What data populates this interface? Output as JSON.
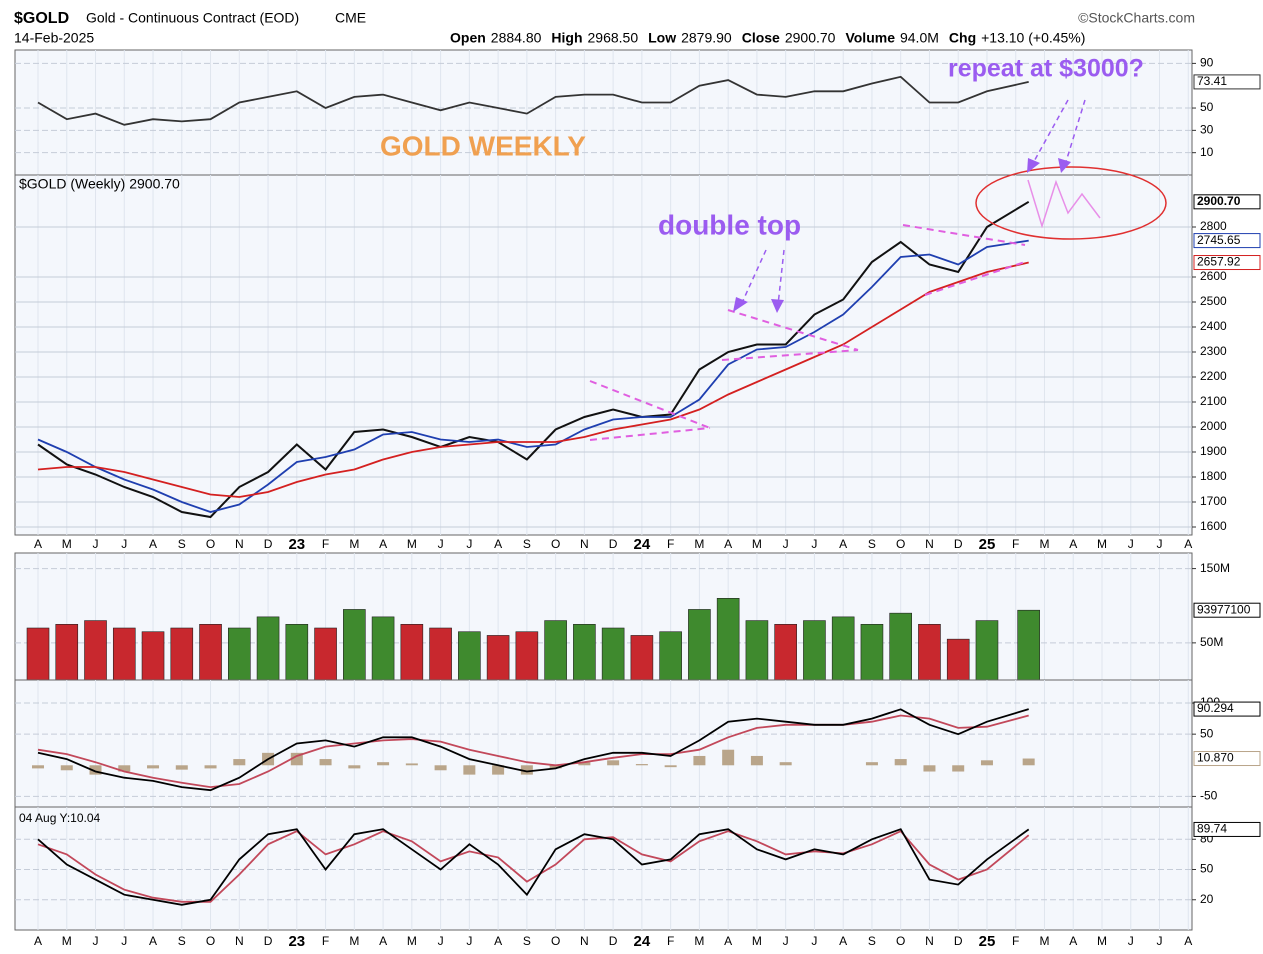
{
  "header": {
    "symbol": "$GOLD",
    "name": "Gold - Continuous Contract (EOD)",
    "exchange": "CME",
    "date": "14-Feb-2025",
    "stats": [
      {
        "label": "Open",
        "value": "2884.80"
      },
      {
        "label": "High",
        "value": "2968.50"
      },
      {
        "label": "Low",
        "value": "2879.90"
      },
      {
        "label": "Close",
        "value": "2900.70"
      },
      {
        "label": "Volume",
        "value": "94.0M"
      },
      {
        "label": "Chg",
        "value": "+13.10 (+0.45%)"
      }
    ],
    "source": "©StockCharts.com"
  },
  "chart_data": [
    {
      "type": "line",
      "ylim": [
        -10,
        102
      ],
      "yticks": [
        10,
        30,
        50,
        90
      ],
      "x": [
        0,
        1,
        2,
        3,
        4,
        5,
        6,
        7,
        8,
        9,
        10,
        11,
        12,
        13,
        14,
        15,
        16,
        17,
        18,
        19,
        20,
        21,
        22,
        23,
        24,
        25,
        26,
        27,
        28,
        29,
        30,
        31,
        32,
        33,
        34.45
      ],
      "series": [
        {
          "color": "#333333",
          "values": [
            55,
            40,
            45,
            35,
            40,
            38,
            40,
            55,
            60,
            65,
            50,
            60,
            62,
            55,
            48,
            55,
            50,
            45,
            60,
            62,
            62,
            55,
            55,
            70,
            75,
            62,
            60,
            65,
            65,
            72,
            78,
            55,
            55,
            65,
            73.41
          ],
          "value_labels": [
            null,
            null,
            null,
            null,
            null,
            null,
            null,
            null,
            null,
            null,
            null,
            null,
            null,
            null,
            null,
            null,
            null,
            null,
            null,
            null,
            null,
            null,
            null,
            null,
            null,
            null,
            null,
            null,
            null,
            null,
            null,
            null,
            null,
            null,
            "73.41"
          ]
        }
      ]
    },
    {
      "type": "line",
      "title": "$GOLD (Weekly) 2900.70",
      "annotations": [
        "GOLD WEEKLY",
        "double top",
        "repeat at $3000?"
      ],
      "ylim": [
        1568,
        3008
      ],
      "yticks": [
        1600,
        1700,
        1800,
        1900,
        2000,
        2100,
        2200,
        2300,
        2400,
        2500,
        2600,
        2800
      ],
      "xlim": [
        -0.8,
        40.13
      ],
      "xticks": [
        {
          "value": 0,
          "label": "A"
        },
        {
          "value": 1,
          "label": "M"
        },
        {
          "value": 2,
          "label": "J"
        },
        {
          "value": 3,
          "label": "J"
        },
        {
          "value": 4,
          "label": "A"
        },
        {
          "value": 5,
          "label": "S"
        },
        {
          "value": 6,
          "label": "O"
        },
        {
          "value": 7,
          "label": "N"
        },
        {
          "value": 8,
          "label": "D"
        },
        {
          "value": 9,
          "label": "23"
        },
        {
          "value": 10,
          "label": "F"
        },
        {
          "value": 11,
          "label": "M"
        },
        {
          "value": 12,
          "label": "A"
        },
        {
          "value": 13,
          "label": "M"
        },
        {
          "value": 14,
          "label": "J"
        },
        {
          "value": 15,
          "label": "J"
        },
        {
          "value": 16,
          "label": "A"
        },
        {
          "value": 17,
          "label": "S"
        },
        {
          "value": 18,
          "label": "O"
        },
        {
          "value": 19,
          "label": "N"
        },
        {
          "value": 20,
          "label": "D"
        },
        {
          "value": 21,
          "label": "24"
        },
        {
          "value": 22,
          "label": "F"
        },
        {
          "value": 23,
          "label": "M"
        },
        {
          "value": 24,
          "label": "A"
        },
        {
          "value": 25,
          "label": "M"
        },
        {
          "value": 26,
          "label": "J"
        },
        {
          "value": 27,
          "label": "J"
        },
        {
          "value": 28,
          "label": "A"
        },
        {
          "value": 29,
          "label": "S"
        },
        {
          "value": 30,
          "label": "O"
        },
        {
          "value": 31,
          "label": "N"
        },
        {
          "value": 32,
          "label": "D"
        },
        {
          "value": 33,
          "label": "25"
        },
        {
          "value": 34,
          "label": "F"
        },
        {
          "value": 35,
          "label": "M"
        },
        {
          "value": 36,
          "label": "A"
        },
        {
          "value": 37,
          "label": "M"
        },
        {
          "value": 38,
          "label": "J"
        },
        {
          "value": 39,
          "label": "J"
        },
        {
          "value": 40,
          "label": "A"
        }
      ],
      "x": [
        0,
        1,
        2,
        3,
        4,
        5,
        6,
        7,
        8,
        9,
        10,
        11,
        12,
        13,
        14,
        15,
        16,
        17,
        18,
        19,
        20,
        21,
        22,
        23,
        24,
        25,
        26,
        27,
        28,
        29,
        30,
        31,
        32,
        33,
        34.45
      ],
      "series": [
        {
          "color": "#111111",
          "values": [
            1930,
            1850,
            1810,
            1760,
            1720,
            1660,
            1640,
            1760,
            1820,
            1930,
            1830,
            1980,
            1990,
            1960,
            1920,
            1960,
            1940,
            1870,
            1990,
            2040,
            2070,
            2040,
            2050,
            2230,
            2300,
            2330,
            2330,
            2450,
            2510,
            2660,
            2740,
            2650,
            2620,
            2800,
            2900.7
          ],
          "value_labels": [
            null,
            null,
            null,
            null,
            null,
            null,
            null,
            null,
            null,
            null,
            null,
            null,
            null,
            null,
            null,
            null,
            null,
            null,
            null,
            null,
            null,
            null,
            null,
            null,
            null,
            null,
            null,
            null,
            null,
            null,
            null,
            null,
            null,
            null,
            "2900.70"
          ]
        },
        {
          "color": "#1f3fb0",
          "values": [
            1950,
            1900,
            1840,
            1790,
            1750,
            1700,
            1660,
            1690,
            1770,
            1860,
            1880,
            1910,
            1970,
            1980,
            1950,
            1940,
            1950,
            1920,
            1930,
            1990,
            2030,
            2040,
            2040,
            2110,
            2250,
            2310,
            2320,
            2380,
            2450,
            2560,
            2680,
            2690,
            2650,
            2720,
            2745.65
          ],
          "value_labels": [
            null,
            null,
            null,
            null,
            null,
            null,
            null,
            null,
            null,
            null,
            null,
            null,
            null,
            null,
            null,
            null,
            null,
            null,
            null,
            null,
            null,
            null,
            null,
            null,
            null,
            null,
            null,
            null,
            null,
            null,
            null,
            null,
            null,
            null,
            "2745.65"
          ]
        },
        {
          "color": "#d42020",
          "values": [
            1830,
            1840,
            1840,
            1820,
            1790,
            1760,
            1730,
            1720,
            1740,
            1780,
            1810,
            1830,
            1870,
            1900,
            1920,
            1930,
            1940,
            1940,
            1940,
            1960,
            1990,
            2010,
            2030,
            2070,
            2130,
            2180,
            2230,
            2280,
            2330,
            2400,
            2470,
            2540,
            2580,
            2620,
            2657.92
          ],
          "value_labels": [
            null,
            null,
            null,
            null,
            null,
            null,
            null,
            null,
            null,
            null,
            null,
            null,
            null,
            null,
            null,
            null,
            null,
            null,
            null,
            null,
            null,
            null,
            null,
            null,
            null,
            null,
            null,
            null,
            null,
            null,
            null,
            null,
            null,
            null,
            "2657.92"
          ]
        }
      ]
    },
    {
      "type": "bar",
      "ylim": [
        0,
        171
      ],
      "yticks": [
        {
          "value": 50,
          "label": "50M"
        },
        {
          "value": 150,
          "label": "150M"
        }
      ],
      "x": [
        0,
        1,
        2,
        3,
        4,
        5,
        6,
        7,
        8,
        9,
        10,
        11,
        12,
        13,
        14,
        15,
        16,
        17,
        18,
        19,
        20,
        21,
        22,
        23,
        24,
        25,
        26,
        27,
        28,
        29,
        30,
        31,
        32,
        33,
        34.45
      ],
      "values": [
        70,
        75,
        80,
        70,
        65,
        70,
        75,
        70,
        85,
        75,
        70,
        95,
        85,
        75,
        70,
        65,
        60,
        65,
        80,
        75,
        70,
        60,
        65,
        95,
        110,
        80,
        75,
        80,
        85,
        75,
        90,
        75,
        55,
        80,
        93.9771
      ],
      "colors": [
        "#c8282e",
        "#c8282e",
        "#c8282e",
        "#c8282e",
        "#c8282e",
        "#c8282e",
        "#c8282e",
        "#3f8a2e",
        "#3f8a2e",
        "#3f8a2e",
        "#c8282e",
        "#3f8a2e",
        "#3f8a2e",
        "#c8282e",
        "#c8282e",
        "#3f8a2e",
        "#c8282e",
        "#c8282e",
        "#3f8a2e",
        "#3f8a2e",
        "#3f8a2e",
        "#c8282e",
        "#3f8a2e",
        "#3f8a2e",
        "#3f8a2e",
        "#3f8a2e",
        "#c8282e",
        "#3f8a2e",
        "#3f8a2e",
        "#3f8a2e",
        "#3f8a2e",
        "#c8282e",
        "#c8282e",
        "#3f8a2e",
        "#3f8a2e"
      ],
      "value_labels": [
        null,
        null,
        null,
        null,
        null,
        null,
        null,
        null,
        null,
        null,
        null,
        null,
        null,
        null,
        null,
        null,
        null,
        null,
        null,
        null,
        null,
        null,
        null,
        null,
        null,
        null,
        null,
        null,
        null,
        null,
        null,
        null,
        null,
        null,
        "93977100"
      ]
    },
    {
      "type": "line",
      "ylim": [
        -67,
        137
      ],
      "yticks": [
        -50,
        50,
        100
      ],
      "x": [
        0,
        1,
        2,
        3,
        4,
        5,
        6,
        7,
        8,
        9,
        10,
        11,
        12,
        13,
        14,
        15,
        16,
        17,
        18,
        19,
        20,
        21,
        22,
        23,
        24,
        25,
        26,
        27,
        28,
        29,
        30,
        31,
        32,
        33,
        34.45
      ],
      "series": [
        {
          "style": "bar",
          "color": "#b9a58a",
          "values": [
            -5,
            -8,
            -15,
            -10,
            -5,
            -7,
            -5,
            10,
            20,
            20,
            10,
            -5,
            5,
            3,
            -8,
            -15,
            -15,
            -15,
            -5,
            5,
            8,
            2,
            -3,
            15,
            25,
            15,
            5,
            0,
            0,
            5,
            10,
            -10,
            -10,
            8,
            10.87
          ],
          "value_labels": [
            null,
            null,
            null,
            null,
            null,
            null,
            null,
            null,
            null,
            null,
            null,
            null,
            null,
            null,
            null,
            null,
            null,
            null,
            null,
            null,
            null,
            null,
            null,
            null,
            null,
            null,
            null,
            null,
            null,
            null,
            null,
            null,
            null,
            null,
            "10.870"
          ]
        },
        {
          "color": "#c2485a",
          "values": [
            25,
            18,
            5,
            -10,
            -20,
            -28,
            -35,
            -30,
            -10,
            15,
            30,
            35,
            40,
            42,
            38,
            25,
            15,
            5,
            0,
            5,
            12,
            18,
            18,
            25,
            45,
            60,
            65,
            65,
            65,
            70,
            80,
            75,
            60,
            62,
            80
          ]
        },
        {
          "color": "#000000",
          "values": [
            20,
            10,
            -10,
            -20,
            -25,
            -35,
            -40,
            -20,
            10,
            35,
            40,
            30,
            45,
            45,
            30,
            10,
            0,
            -10,
            -5,
            10,
            20,
            20,
            15,
            40,
            70,
            75,
            70,
            65,
            65,
            75,
            90,
            65,
            50,
            70,
            90.294
          ],
          "value_labels": [
            null,
            null,
            null,
            null,
            null,
            null,
            null,
            null,
            null,
            null,
            null,
            null,
            null,
            null,
            null,
            null,
            null,
            null,
            null,
            null,
            null,
            null,
            null,
            null,
            null,
            null,
            null,
            null,
            null,
            null,
            null,
            null,
            null,
            null,
            "90.294"
          ]
        }
      ]
    },
    {
      "type": "line",
      "ylim": [
        -10,
        112
      ],
      "yticks": [
        20,
        50,
        80
      ],
      "annotations": [
        "04 Aug Y:10.04"
      ],
      "x": [
        0,
        1,
        2,
        3,
        4,
        5,
        6,
        7,
        8,
        9,
        10,
        11,
        12,
        13,
        14,
        15,
        16,
        17,
        18,
        19,
        20,
        21,
        22,
        23,
        24,
        25,
        26,
        27,
        28,
        29,
        30,
        31,
        32,
        33,
        34.45
      ],
      "series": [
        {
          "color": "#c2485a",
          "values": [
            75,
            65,
            45,
            30,
            22,
            18,
            18,
            45,
            75,
            88,
            65,
            75,
            88,
            78,
            58,
            68,
            62,
            38,
            55,
            80,
            82,
            65,
            58,
            78,
            88,
            78,
            65,
            68,
            66,
            75,
            88,
            55,
            40,
            50,
            84
          ]
        },
        {
          "color": "#000000",
          "values": [
            80,
            55,
            40,
            25,
            20,
            15,
            20,
            60,
            85,
            90,
            50,
            85,
            90,
            70,
            50,
            75,
            55,
            25,
            70,
            85,
            80,
            55,
            60,
            85,
            90,
            70,
            60,
            70,
            65,
            80,
            90,
            40,
            35,
            60,
            89.74
          ],
          "value_labels": [
            null,
            null,
            null,
            null,
            null,
            null,
            null,
            null,
            null,
            null,
            null,
            null,
            null,
            null,
            null,
            null,
            null,
            null,
            null,
            null,
            null,
            null,
            null,
            null,
            null,
            null,
            null,
            null,
            null,
            null,
            null,
            null,
            null,
            null,
            "89.74"
          ]
        }
      ]
    }
  ]
}
